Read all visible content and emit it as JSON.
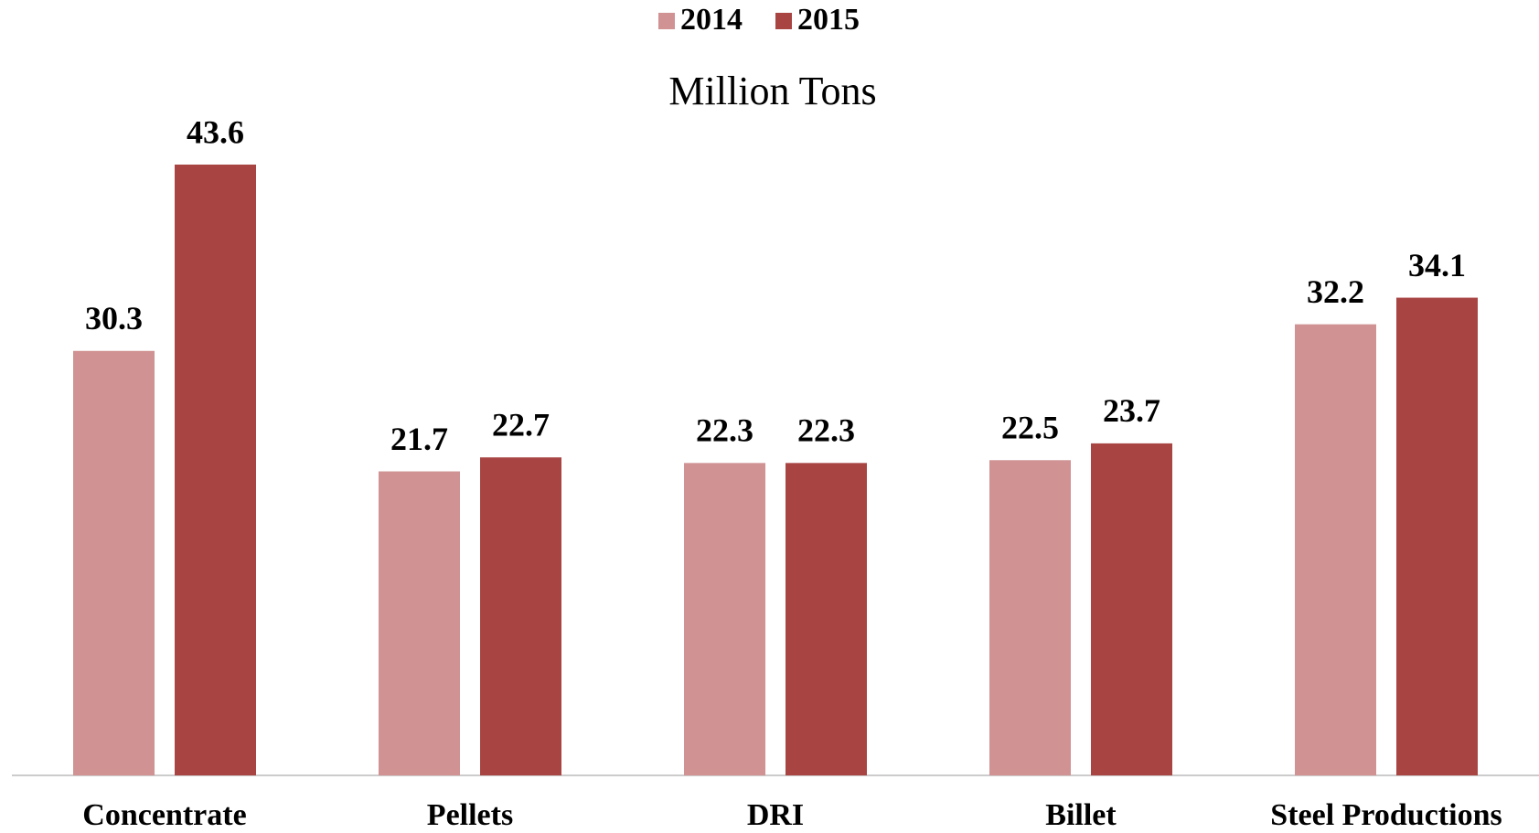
{
  "chart_data": {
    "type": "bar",
    "title": "Million Tons",
    "categories": [
      "Concentrate",
      "Pellets",
      "DRI",
      "Billet",
      "Steel Productions"
    ],
    "series": [
      {
        "name": "2014",
        "color": "#d09292",
        "values": [
          30.3,
          21.7,
          22.3,
          22.5,
          32.2
        ]
      },
      {
        "name": "2015",
        "color": "#a84543",
        "values": [
          43.6,
          22.7,
          22.3,
          23.7,
          34.1
        ]
      }
    ],
    "legend": "top"
  }
}
